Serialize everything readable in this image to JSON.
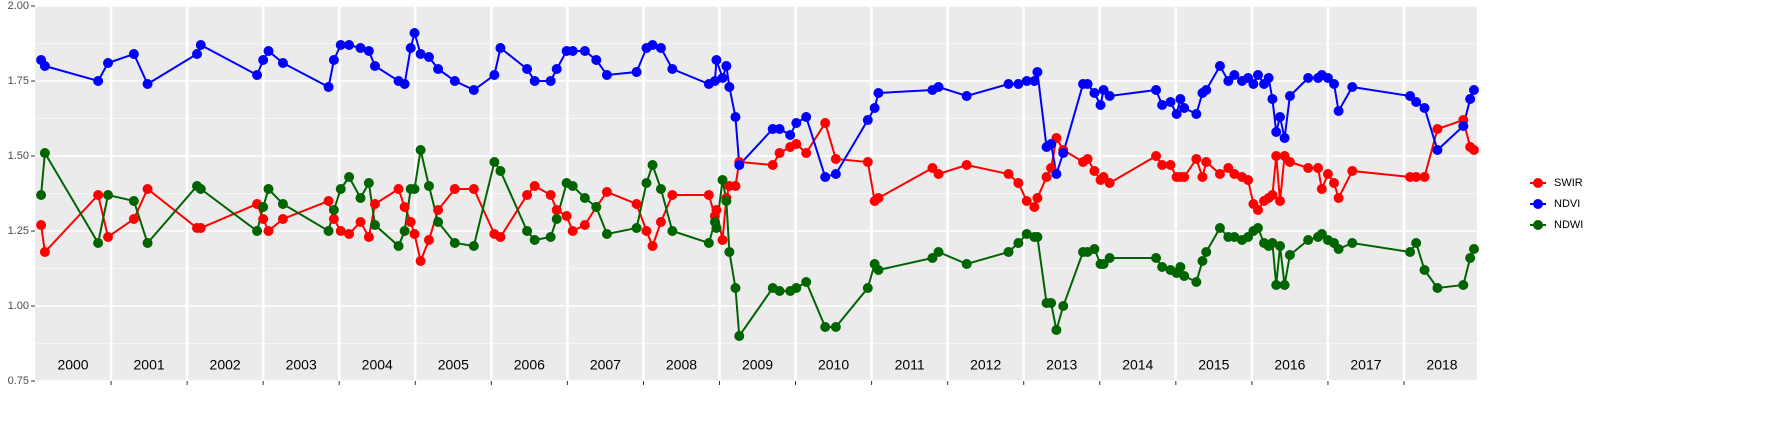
{
  "chart_data": {
    "type": "line",
    "x": [
      2000.08,
      2000.13,
      2000.83,
      2000.96,
      2001.3,
      2001.48,
      2002.13,
      2002.18,
      2002.92,
      2003.0,
      2003.07,
      2003.26,
      2003.86,
      2003.93,
      2004.02,
      2004.13,
      2004.28,
      2004.39,
      2004.47,
      2004.78,
      2004.86,
      2004.94,
      2004.99,
      2005.07,
      2005.18,
      2005.3,
      2005.52,
      2005.77,
      2006.04,
      2006.12,
      2006.47,
      2006.57,
      2006.78,
      2006.86,
      2006.99,
      2007.07,
      2007.23,
      2007.38,
      2007.52,
      2007.91,
      2008.04,
      2008.12,
      2008.23,
      2008.38,
      2008.86,
      2008.94,
      2008.96,
      2009.04,
      2009.09,
      2009.13,
      2009.21,
      2009.26,
      2009.7,
      2009.79,
      2009.93,
      2010.01,
      2010.14,
      2010.39,
      2010.53,
      2010.95,
      2011.04,
      2011.09,
      2011.8,
      2011.88,
      2012.25,
      2012.8,
      2012.93,
      2013.04,
      2013.14,
      2013.18,
      2013.3,
      2013.36,
      2013.43,
      2013.52,
      2013.78,
      2013.84,
      2013.93,
      2014.01,
      2014.05,
      2014.13,
      2014.74,
      2014.82,
      2014.93,
      2015.01,
      2015.06,
      2015.11,
      2015.27,
      2015.35,
      2015.4,
      2015.58,
      2015.69,
      2015.77,
      2015.87,
      2015.95,
      2016.02,
      2016.08,
      2016.16,
      2016.22,
      2016.27,
      2016.32,
      2016.37,
      2016.43,
      2016.5,
      2016.74,
      2016.87,
      2016.92,
      2017.0,
      2017.08,
      2017.14,
      2017.32,
      2018.08,
      2018.16,
      2018.27,
      2018.44,
      2018.78,
      2018.87,
      2018.92
    ],
    "series": [
      {
        "name": "SWIR",
        "color": "#ff0000",
        "values": [
          1.27,
          1.18,
          1.37,
          1.23,
          1.29,
          1.39,
          1.26,
          1.26,
          1.34,
          1.29,
          1.25,
          1.29,
          1.35,
          1.29,
          1.25,
          1.24,
          1.28,
          1.23,
          1.34,
          1.39,
          1.33,
          1.28,
          1.24,
          1.15,
          1.22,
          1.32,
          1.39,
          1.39,
          1.24,
          1.23,
          1.37,
          1.4,
          1.37,
          1.32,
          1.3,
          1.25,
          1.27,
          1.33,
          1.38,
          1.34,
          1.25,
          1.2,
          1.28,
          1.37,
          1.37,
          1.3,
          1.32,
          1.22,
          1.36,
          1.4,
          1.4,
          1.48,
          1.47,
          1.51,
          1.53,
          1.54,
          1.51,
          1.61,
          1.49,
          1.48,
          1.35,
          1.36,
          1.46,
          1.44,
          1.47,
          1.44,
          1.41,
          1.35,
          1.33,
          1.36,
          1.43,
          1.46,
          1.56,
          1.52,
          1.48,
          1.49,
          1.45,
          1.42,
          1.43,
          1.41,
          1.5,
          1.47,
          1.47,
          1.43,
          1.43,
          1.43,
          1.49,
          1.43,
          1.48,
          1.44,
          1.46,
          1.44,
          1.43,
          1.42,
          1.34,
          1.32,
          1.35,
          1.36,
          1.37,
          1.5,
          1.35,
          1.5,
          1.48,
          1.46,
          1.46,
          1.39,
          1.44,
          1.41,
          1.36,
          1.45,
          1.43,
          1.43,
          1.43,
          1.59,
          1.62,
          1.53,
          1.52
        ]
      },
      {
        "name": "NDVI",
        "color": "#0000ff",
        "values": [
          1.82,
          1.8,
          1.75,
          1.81,
          1.84,
          1.74,
          1.84,
          1.87,
          1.77,
          1.82,
          1.85,
          1.81,
          1.73,
          1.82,
          1.87,
          1.87,
          1.86,
          1.85,
          1.8,
          1.75,
          1.74,
          1.86,
          1.91,
          1.84,
          1.83,
          1.79,
          1.75,
          1.72,
          1.77,
          1.86,
          1.79,
          1.75,
          1.75,
          1.79,
          1.85,
          1.85,
          1.85,
          1.82,
          1.77,
          1.78,
          1.86,
          1.87,
          1.86,
          1.79,
          1.74,
          1.75,
          1.82,
          1.76,
          1.8,
          1.73,
          1.63,
          1.47,
          1.59,
          1.59,
          1.57,
          1.61,
          1.63,
          1.43,
          1.44,
          1.62,
          1.66,
          1.71,
          1.72,
          1.73,
          1.7,
          1.74,
          1.74,
          1.75,
          1.75,
          1.78,
          1.53,
          1.54,
          1.44,
          1.51,
          1.74,
          1.74,
          1.71,
          1.67,
          1.72,
          1.7,
          1.72,
          1.67,
          1.68,
          1.64,
          1.69,
          1.66,
          1.64,
          1.71,
          1.72,
          1.8,
          1.75,
          1.77,
          1.75,
          1.76,
          1.74,
          1.77,
          1.74,
          1.76,
          1.69,
          1.58,
          1.63,
          1.56,
          1.7,
          1.76,
          1.76,
          1.77,
          1.76,
          1.74,
          1.65,
          1.73,
          1.7,
          1.68,
          1.66,
          1.52,
          1.6,
          1.69,
          1.72
        ]
      },
      {
        "name": "NDWI",
        "color": "#006400",
        "values": [
          1.37,
          1.51,
          1.21,
          1.37,
          1.35,
          1.21,
          1.4,
          1.39,
          1.25,
          1.33,
          1.39,
          1.34,
          1.25,
          1.32,
          1.39,
          1.43,
          1.36,
          1.41,
          1.27,
          1.2,
          1.25,
          1.39,
          1.39,
          1.52,
          1.4,
          1.28,
          1.21,
          1.2,
          1.48,
          1.45,
          1.25,
          1.22,
          1.23,
          1.29,
          1.41,
          1.4,
          1.36,
          1.33,
          1.24,
          1.26,
          1.41,
          1.47,
          1.39,
          1.25,
          1.21,
          1.28,
          1.26,
          1.42,
          1.35,
          1.18,
          1.06,
          0.9,
          1.06,
          1.05,
          1.05,
          1.06,
          1.08,
          0.93,
          0.93,
          1.06,
          1.14,
          1.12,
          1.16,
          1.18,
          1.14,
          1.18,
          1.21,
          1.24,
          1.23,
          1.23,
          1.01,
          1.01,
          0.92,
          1.0,
          1.18,
          1.18,
          1.19,
          1.14,
          1.14,
          1.16,
          1.16,
          1.13,
          1.12,
          1.11,
          1.13,
          1.1,
          1.08,
          1.15,
          1.18,
          1.26,
          1.23,
          1.23,
          1.22,
          1.23,
          1.25,
          1.26,
          1.21,
          1.2,
          1.21,
          1.07,
          1.2,
          1.07,
          1.17,
          1.22,
          1.23,
          1.24,
          1.22,
          1.21,
          1.19,
          1.21,
          1.18,
          1.21,
          1.12,
          1.06,
          1.07,
          1.16,
          1.19
        ]
      }
    ],
    "xlim": [
      2000,
      2018.96
    ],
    "xticks": [
      {
        "value": 2000.5,
        "label": "2000"
      },
      {
        "value": 2001.5,
        "label": "2001"
      },
      {
        "value": 2002.5,
        "label": "2002"
      },
      {
        "value": 2003.5,
        "label": "2003"
      },
      {
        "value": 2004.5,
        "label": "2004"
      },
      {
        "value": 2005.5,
        "label": "2005"
      },
      {
        "value": 2006.5,
        "label": "2006"
      },
      {
        "value": 2007.5,
        "label": "2007"
      },
      {
        "value": 2008.5,
        "label": "2008"
      },
      {
        "value": 2009.5,
        "label": "2009"
      },
      {
        "value": 2010.5,
        "label": "2010"
      },
      {
        "value": 2011.5,
        "label": "2011"
      },
      {
        "value": 2012.5,
        "label": "2012"
      },
      {
        "value": 2013.5,
        "label": "2013"
      },
      {
        "value": 2014.5,
        "label": "2014"
      },
      {
        "value": 2015.5,
        "label": "2015"
      },
      {
        "value": 2016.5,
        "label": "2016"
      },
      {
        "value": 2017.5,
        "label": "2017"
      },
      {
        "value": 2018.5,
        "label": "2018"
      }
    ],
    "ylim": [
      0.75,
      2.0
    ],
    "yticks": [
      {
        "value": 0.75,
        "label": "0.75"
      },
      {
        "value": 1.0,
        "label": "1.00"
      },
      {
        "value": 1.25,
        "label": "1.25"
      },
      {
        "value": 1.5,
        "label": "1.50"
      },
      {
        "value": 1.75,
        "label": "1.75"
      },
      {
        "value": 2.0,
        "label": "2.00"
      }
    ],
    "grid": true,
    "legend": "right"
  }
}
